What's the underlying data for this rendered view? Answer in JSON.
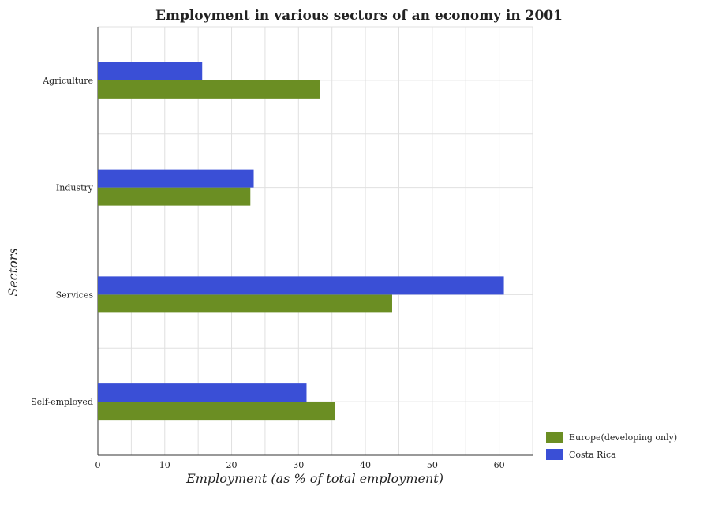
{
  "chart_data": {
    "type": "bar",
    "orientation": "horizontal",
    "title": "Employment in various sectors of an economy in 2001",
    "xlabel": "Employment (as % of total employment)",
    "ylabel": "Sectors",
    "xlim": [
      0,
      65
    ],
    "xticks": [
      "0",
      "10",
      "20",
      "30",
      "40",
      "50",
      "60"
    ],
    "grid": true,
    "legend_position": "bottom-right",
    "categories": [
      "Agriculture",
      "Industry",
      "Services",
      "Self-employed"
    ],
    "series": [
      {
        "name": "Europe(developing only)",
        "color": "#6b8e23",
        "values": [
          33.2,
          22.8,
          44.0,
          35.5
        ]
      },
      {
        "name": "Costa Rica",
        "color": "#3a4fd6",
        "values": [
          15.6,
          23.3,
          60.7,
          31.2
        ]
      }
    ]
  }
}
